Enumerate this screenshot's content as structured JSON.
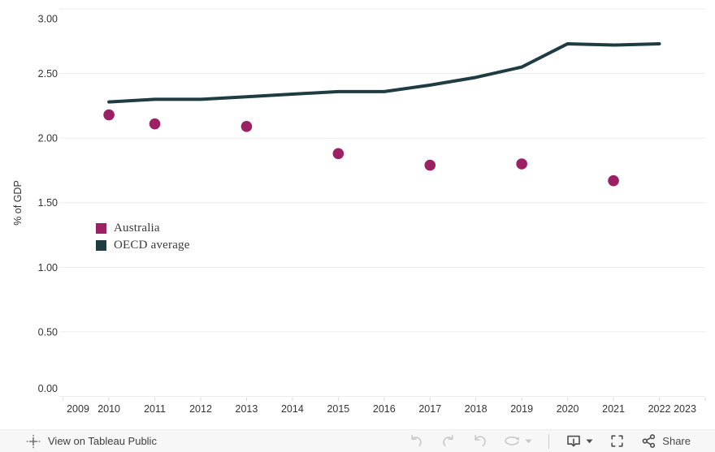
{
  "chart_data": {
    "type": "line",
    "title": "",
    "xlabel": "",
    "ylabel": "% of GDP",
    "ylim": [
      0,
      3
    ],
    "x_range": [
      2009,
      2023
    ],
    "grid": "horizontal",
    "legend_position": "inside-left",
    "y_ticks": [
      {
        "value": 0.0,
        "label": "0.00"
      },
      {
        "value": 0.5,
        "label": "0.50"
      },
      {
        "value": 1.0,
        "label": "1.00"
      },
      {
        "value": 1.5,
        "label": "1.50"
      },
      {
        "value": 2.0,
        "label": "2.00"
      },
      {
        "value": 2.5,
        "label": "2.50"
      },
      {
        "value": 3.0,
        "label": "3.00"
      }
    ],
    "x_ticks": [
      2009,
      2010,
      2011,
      2012,
      2013,
      2014,
      2015,
      2016,
      2017,
      2018,
      2019,
      2020,
      2021,
      2022,
      2023
    ],
    "series": [
      {
        "name": "Australia",
        "type": "scatter",
        "color": "#9B2164",
        "x": [
          2010,
          2011,
          2013,
          2015,
          2017,
          2019,
          2021
        ],
        "y": [
          2.18,
          2.11,
          2.09,
          1.88,
          1.79,
          1.8,
          1.67
        ]
      },
      {
        "name": "OECD average",
        "type": "line",
        "color": "#1F3C42",
        "x": [
          2010,
          2011,
          2012,
          2013,
          2014,
          2015,
          2016,
          2017,
          2018,
          2019,
          2020,
          2021,
          2022
        ],
        "y": [
          2.28,
          2.3,
          2.3,
          2.32,
          2.34,
          2.36,
          2.36,
          2.41,
          2.47,
          2.55,
          2.73,
          2.72,
          2.73
        ]
      }
    ]
  },
  "axis": {
    "y_title": "% of GDP"
  },
  "toolbar": {
    "view_on_label": "View on Tableau Public",
    "share_label": "Share",
    "icons": [
      "tableau-logo-icon",
      "undo-icon",
      "redo-icon",
      "revert-icon",
      "refresh-icon",
      "caret-down-icon",
      "download-icon",
      "fullscreen-icon",
      "share-icon"
    ]
  },
  "colors": {
    "australia": "#9B2164",
    "oecd_average": "#1F3C42",
    "gridline": "#ECECEC",
    "toolbar_bg": "#F7F7F7"
  }
}
